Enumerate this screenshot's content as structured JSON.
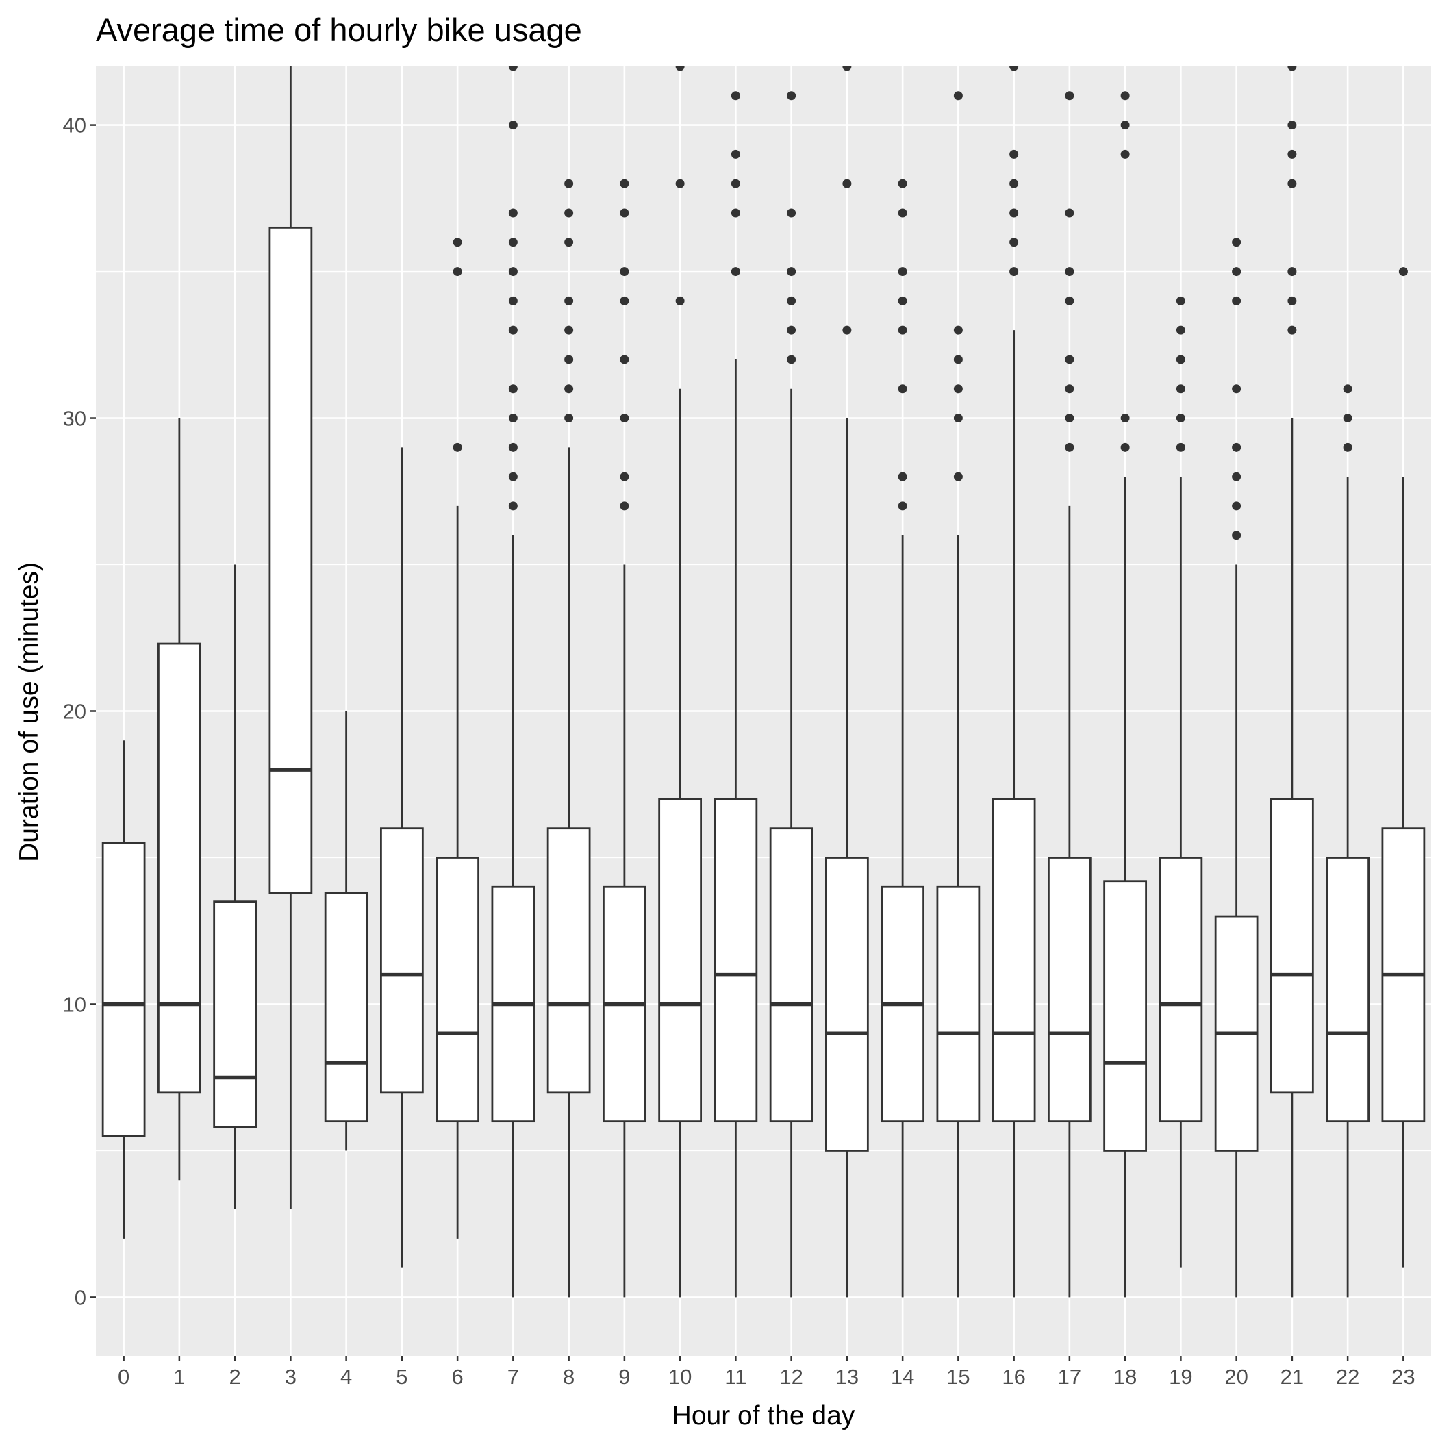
{
  "chart_data": {
    "type": "boxplot",
    "title": "Average time of hourly bike usage",
    "xlabel": "Hour of the day",
    "ylabel": "Duration of use (minutes)",
    "ylim": [
      -2,
      42
    ],
    "yticks": [
      0,
      10,
      20,
      30,
      40
    ],
    "grid": true,
    "legend": "none",
    "categories": [
      "0",
      "1",
      "2",
      "3",
      "4",
      "5",
      "6",
      "7",
      "8",
      "9",
      "10",
      "11",
      "12",
      "13",
      "14",
      "15",
      "16",
      "17",
      "18",
      "19",
      "20",
      "21",
      "22",
      "23"
    ],
    "boxes": [
      {
        "hour": "0",
        "min": 2,
        "q1": 5.5,
        "median": 10,
        "q3": 15.5,
        "max": 19,
        "outliers": []
      },
      {
        "hour": "1",
        "min": 4,
        "q1": 7,
        "median": 10,
        "q3": 22.3,
        "max": 30,
        "outliers": []
      },
      {
        "hour": "2",
        "min": 3,
        "q1": 5.8,
        "median": 7.5,
        "q3": 13.5,
        "max": 25,
        "outliers": []
      },
      {
        "hour": "3",
        "min": 3,
        "q1": 13.8,
        "median": 18,
        "q3": 36.5,
        "max": 42,
        "outliers": []
      },
      {
        "hour": "4",
        "min": 5,
        "q1": 6,
        "median": 8,
        "q3": 13.8,
        "max": 20,
        "outliers": []
      },
      {
        "hour": "5",
        "min": 1,
        "q1": 7,
        "median": 11,
        "q3": 16,
        "max": 29,
        "outliers": []
      },
      {
        "hour": "6",
        "min": 2,
        "q1": 6,
        "median": 9,
        "q3": 15,
        "max": 27,
        "outliers": [
          29,
          35,
          36
        ]
      },
      {
        "hour": "7",
        "min": 0,
        "q1": 6,
        "median": 10,
        "q3": 14,
        "max": 26,
        "outliers": [
          27,
          28,
          29,
          30,
          31,
          33,
          34,
          35,
          36,
          37,
          40,
          42
        ]
      },
      {
        "hour": "8",
        "min": 0,
        "q1": 7,
        "median": 10,
        "q3": 16,
        "max": 29,
        "outliers": [
          30,
          31,
          32,
          33,
          34,
          36,
          37,
          38
        ]
      },
      {
        "hour": "9",
        "min": 0,
        "q1": 6,
        "median": 10,
        "q3": 14,
        "max": 25,
        "outliers": [
          27,
          28,
          30,
          32,
          34,
          35,
          37,
          38
        ]
      },
      {
        "hour": "10",
        "min": 0,
        "q1": 6,
        "median": 10,
        "q3": 17,
        "max": 31,
        "outliers": [
          34,
          38,
          42
        ]
      },
      {
        "hour": "11",
        "min": 0,
        "q1": 6,
        "median": 11,
        "q3": 17,
        "max": 32,
        "outliers": [
          35,
          37,
          38,
          39,
          41
        ]
      },
      {
        "hour": "12",
        "min": 0,
        "q1": 6,
        "median": 10,
        "q3": 16,
        "max": 31,
        "outliers": [
          32,
          33,
          34,
          35,
          37,
          41
        ]
      },
      {
        "hour": "13",
        "min": 0,
        "q1": 5,
        "median": 9,
        "q3": 15,
        "max": 30,
        "outliers": [
          33,
          38,
          42
        ]
      },
      {
        "hour": "14",
        "min": 0,
        "q1": 6,
        "median": 10,
        "q3": 14,
        "max": 26,
        "outliers": [
          27,
          28,
          31,
          33,
          34,
          35,
          37,
          38
        ]
      },
      {
        "hour": "15",
        "min": 0,
        "q1": 6,
        "median": 9,
        "q3": 14,
        "max": 26,
        "outliers": [
          28,
          30,
          31,
          32,
          33,
          41
        ]
      },
      {
        "hour": "16",
        "min": 0,
        "q1": 6,
        "median": 9,
        "q3": 17,
        "max": 33,
        "outliers": [
          35,
          36,
          37,
          38,
          39,
          42
        ]
      },
      {
        "hour": "17",
        "min": 0,
        "q1": 6,
        "median": 9,
        "q3": 15,
        "max": 27,
        "outliers": [
          29,
          30,
          31,
          32,
          34,
          35,
          37,
          41
        ]
      },
      {
        "hour": "18",
        "min": 0,
        "q1": 5,
        "median": 8,
        "q3": 14.2,
        "max": 28,
        "outliers": [
          29,
          30,
          39,
          40,
          41
        ]
      },
      {
        "hour": "19",
        "min": 1,
        "q1": 6,
        "median": 10,
        "q3": 15,
        "max": 28,
        "outliers": [
          29,
          30,
          31,
          32,
          33,
          34
        ]
      },
      {
        "hour": "20",
        "min": 0,
        "q1": 5,
        "median": 9,
        "q3": 13,
        "max": 25,
        "outliers": [
          26,
          27,
          28,
          29,
          31,
          34,
          35,
          36
        ]
      },
      {
        "hour": "21",
        "min": 0,
        "q1": 7,
        "median": 11,
        "q3": 17,
        "max": 30,
        "outliers": [
          33,
          34,
          35,
          38,
          39,
          40,
          42
        ]
      },
      {
        "hour": "22",
        "min": 0,
        "q1": 6,
        "median": 9,
        "q3": 15,
        "max": 28,
        "outliers": [
          29,
          30,
          31
        ]
      },
      {
        "hour": "23",
        "min": 1,
        "q1": 6,
        "median": 11,
        "q3": 16,
        "max": 28,
        "outliers": [
          35
        ]
      }
    ],
    "colors": {
      "panel_background": "#ebebeb",
      "grid_line": "#ffffff",
      "box_fill": "#ffffff",
      "box_stroke": "#333333",
      "outlier": "#333333",
      "tick_label": "#4d4d4d"
    }
  }
}
